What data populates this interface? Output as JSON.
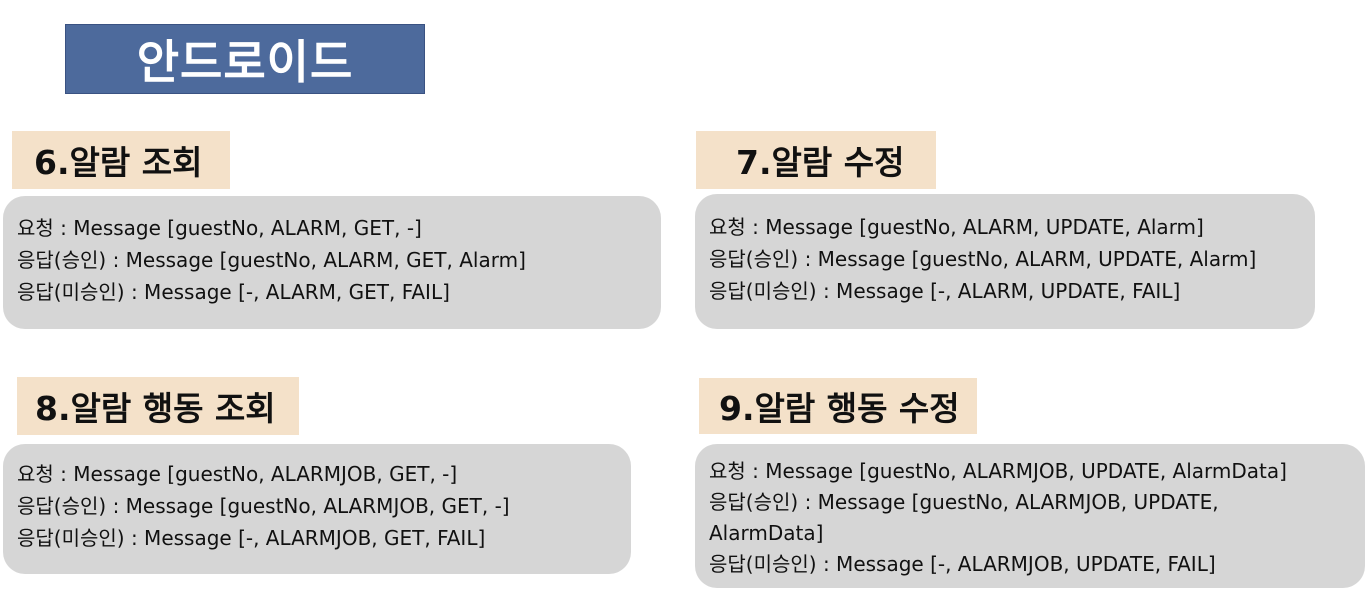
{
  "title": "안드로이드",
  "sections": [
    {
      "heading": "6.알람 조회",
      "lines": [
        "요청 : Message [guestNo, ALARM, GET, -]",
        "응답(승인)  : Message [guestNo, ALARM, GET, Alarm]",
        "응답(미승인) : Message [-, ALARM, GET, FAIL]"
      ]
    },
    {
      "heading": "7.알람 수정",
      "lines": [
        "요청 : Message [guestNo, ALARM, UPDATE, Alarm]",
        "응답(승인) : Message [guestNo, ALARM, UPDATE, Alarm]",
        "응답(미승인) : Message [-, ALARM, UPDATE, FAIL]"
      ]
    },
    {
      "heading": "8.알람 행동 조회",
      "lines": [
        "요청 : Message [guestNo, ALARMJOB, GET, -]",
        "응답(승인)  : Message [guestNo, ALARMJOB, GET, -]",
        "응답(미승인) : Message [-, ALARMJOB, GET, FAIL]"
      ]
    },
    {
      "heading": "9.알람 행동 수정",
      "lines": [
        "요청 : Message [guestNo, ALARMJOB, UPDATE, AlarmData]",
        "응답(승인)  : Message [guestNo, ALARMJOB, UPDATE, AlarmData]",
        "응답(미승인) : Message [-, ALARMJOB, UPDATE, FAIL]"
      ]
    }
  ]
}
